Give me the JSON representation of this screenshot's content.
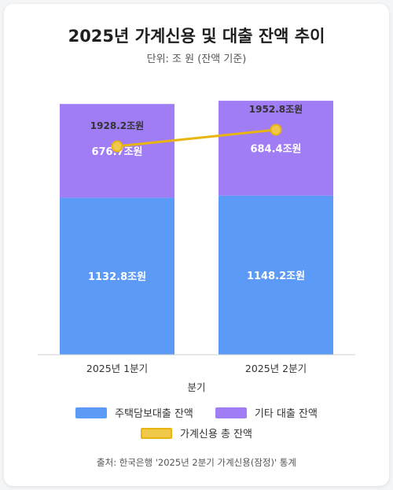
{
  "title": "2025년 가계신용 및 대출 잔액 추이",
  "subtitle": "단위: 조 원 (잔액 기준)",
  "source": "출처: 한국은행 '2025년 2분기 가계신용(잠정)' 통계",
  "colors": {
    "mortgage": "#5b9bf7",
    "other": "#a07cf5",
    "total": "#e8b40f"
  },
  "chart_data": {
    "type": "bar",
    "stacked": true,
    "categories": [
      "2025년 1분기",
      "2025년 2분기"
    ],
    "xlabel": "분기",
    "ylabel": "",
    "ylim": [
      0,
      2100
    ],
    "grid": false,
    "legend_position": "bottom",
    "series": [
      {
        "name": "주택담보대출 잔액",
        "type": "bar",
        "values": [
          1132.8,
          1148.2
        ],
        "labels": [
          "1132.8조원",
          "1148.2조원"
        ]
      },
      {
        "name": "기타 대출 잔액",
        "type": "bar",
        "values": [
          676.7,
          684.4
        ],
        "labels": [
          "676.7조원",
          "684.4조원"
        ]
      },
      {
        "name": "가계신용 총 잔액",
        "type": "line",
        "values": [
          1928.2,
          1952.8
        ],
        "labels": [
          "1928.2조원",
          "1952.8조원"
        ]
      }
    ]
  }
}
